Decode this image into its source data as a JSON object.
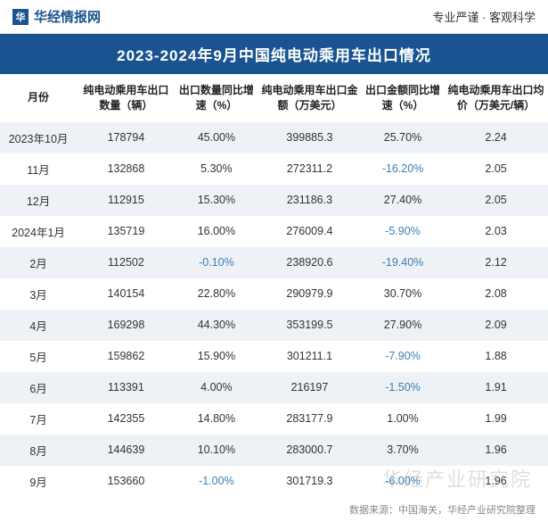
{
  "header": {
    "logo_glyph": "华",
    "logo_text": "华经情报网",
    "tagline": "专业严谨 · 客观科学"
  },
  "title": "2023-2024年9月中国纯电动乘用车出口情况",
  "table": {
    "columns": [
      "月份",
      "纯电动乘用车出口数量（辆）",
      "出口数量同比增速（%）",
      "纯电动乘用车出口金额（万美元）",
      "出口金额同比增速（%）",
      "纯电动乘用车出口均价（万美元/辆）"
    ],
    "rows": [
      {
        "month": "2023年10月",
        "qty": "178794",
        "qty_growth": "45.00%",
        "qty_growth_neg": false,
        "amount": "399885.3",
        "amount_growth": "25.70%",
        "amount_growth_neg": false,
        "avg": "2.24"
      },
      {
        "month": "11月",
        "qty": "132868",
        "qty_growth": "5.30%",
        "qty_growth_neg": false,
        "amount": "272311.2",
        "amount_growth": "-16.20%",
        "amount_growth_neg": true,
        "avg": "2.05"
      },
      {
        "month": "12月",
        "qty": "112915",
        "qty_growth": "15.30%",
        "qty_growth_neg": false,
        "amount": "231186.3",
        "amount_growth": "27.40%",
        "amount_growth_neg": false,
        "avg": "2.05"
      },
      {
        "month": "2024年1月",
        "qty": "135719",
        "qty_growth": "16.00%",
        "qty_growth_neg": false,
        "amount": "276009.4",
        "amount_growth": "-5.90%",
        "amount_growth_neg": true,
        "avg": "2.03"
      },
      {
        "month": "2月",
        "qty": "112502",
        "qty_growth": "-0.10%",
        "qty_growth_neg": true,
        "amount": "238920.6",
        "amount_growth": "-19.40%",
        "amount_growth_neg": true,
        "avg": "2.12"
      },
      {
        "month": "3月",
        "qty": "140154",
        "qty_growth": "22.80%",
        "qty_growth_neg": false,
        "amount": "290979.9",
        "amount_growth": "30.70%",
        "amount_growth_neg": false,
        "avg": "2.08"
      },
      {
        "month": "4月",
        "qty": "169298",
        "qty_growth": "44.30%",
        "qty_growth_neg": false,
        "amount": "353199.5",
        "amount_growth": "27.90%",
        "amount_growth_neg": false,
        "avg": "2.09"
      },
      {
        "month": "5月",
        "qty": "159862",
        "qty_growth": "15.90%",
        "qty_growth_neg": false,
        "amount": "301211.1",
        "amount_growth": "-7.90%",
        "amount_growth_neg": true,
        "avg": "1.88"
      },
      {
        "month": "6月",
        "qty": "113391",
        "qty_growth": "4.00%",
        "qty_growth_neg": false,
        "amount": "216197",
        "amount_growth": "-1.50%",
        "amount_growth_neg": true,
        "avg": "1.91"
      },
      {
        "month": "7月",
        "qty": "142355",
        "qty_growth": "14.80%",
        "qty_growth_neg": false,
        "amount": "283177.9",
        "amount_growth": "1.00%",
        "amount_growth_neg": false,
        "avg": "1.99"
      },
      {
        "month": "8月",
        "qty": "144639",
        "qty_growth": "10.10%",
        "qty_growth_neg": false,
        "amount": "283000.7",
        "amount_growth": "3.70%",
        "amount_growth_neg": false,
        "avg": "1.96"
      },
      {
        "month": "9月",
        "qty": "153660",
        "qty_growth": "-1.00%",
        "qty_growth_neg": true,
        "amount": "301719.3",
        "amount_growth": "-6.00%",
        "amount_growth_neg": true,
        "avg": "1.96"
      }
    ]
  },
  "source": "数据来源：中国海关，华经产业研究院整理",
  "watermark": "华经产业研究院",
  "colors": {
    "header_bg": "#1a5490",
    "row_alt_bg": "#eef1f5",
    "negative": "#3a7fb5",
    "text": "#333333"
  }
}
